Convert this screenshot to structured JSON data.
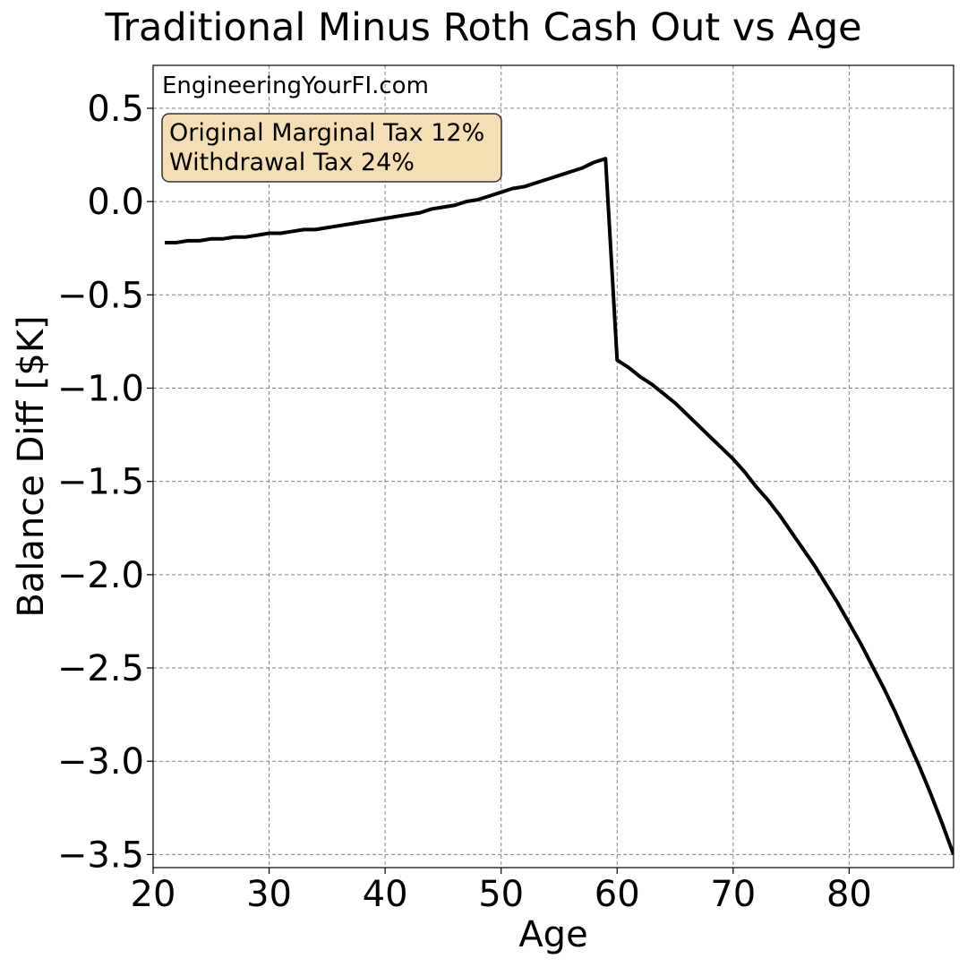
{
  "chart_data": {
    "type": "line",
    "title": "Traditional Minus Roth Cash Out vs Age",
    "xlabel": "Age",
    "ylabel": "Balance Diff [$K]",
    "watermark": "EngineeringYourFI.com",
    "annotation": [
      "Original Marginal Tax 12%",
      "Withdrawal Tax 24%"
    ],
    "annotation_color": "#f5deb3",
    "x": [
      21,
      22,
      23,
      24,
      25,
      26,
      27,
      28,
      29,
      30,
      31,
      32,
      33,
      34,
      35,
      36,
      37,
      38,
      39,
      40,
      41,
      42,
      43,
      44,
      45,
      46,
      47,
      48,
      49,
      50,
      51,
      52,
      53,
      54,
      55,
      56,
      57,
      58,
      59,
      60,
      61,
      62,
      63,
      64,
      65,
      66,
      67,
      68,
      69,
      70,
      71,
      72,
      73,
      74,
      75,
      76,
      77,
      78,
      79,
      80,
      81,
      82,
      83,
      84,
      85,
      86,
      87,
      88,
      89
    ],
    "series": [
      {
        "color": "#000000",
        "values": [
          -0.22,
          -0.22,
          -0.21,
          -0.21,
          -0.2,
          -0.2,
          -0.19,
          -0.19,
          -0.18,
          -0.17,
          -0.17,
          -0.16,
          -0.15,
          -0.15,
          -0.14,
          -0.13,
          -0.12,
          -0.11,
          -0.1,
          -0.09,
          -0.08,
          -0.07,
          -0.06,
          -0.04,
          -0.03,
          -0.02,
          0.0,
          0.01,
          0.03,
          0.05,
          0.07,
          0.08,
          0.1,
          0.12,
          0.14,
          0.16,
          0.18,
          0.21,
          0.23,
          -0.85,
          -0.89,
          -0.94,
          -0.98,
          -1.03,
          -1.08,
          -1.14,
          -1.2,
          -1.26,
          -1.32,
          -1.38,
          -1.45,
          -1.53,
          -1.6,
          -1.68,
          -1.77,
          -1.86,
          -1.95,
          -2.05,
          -2.15,
          -2.26,
          -2.37,
          -2.49,
          -2.61,
          -2.74,
          -2.88,
          -3.02,
          -3.17,
          -3.33,
          -3.5
        ]
      }
    ],
    "xlim": [
      20,
      89
    ],
    "ylim": [
      -3.57,
      0.73
    ],
    "xticks": [
      20,
      30,
      40,
      50,
      60,
      70,
      80
    ],
    "yticks": [
      {
        "value": 0.5,
        "label": "0.5"
      },
      {
        "value": 0,
        "label": "0.0"
      },
      {
        "value": -0.5,
        "label": "−0.5"
      },
      {
        "value": -1,
        "label": "−1.0"
      },
      {
        "value": -1.5,
        "label": "−1.5"
      },
      {
        "value": -2,
        "label": "−2.0"
      },
      {
        "value": -2.5,
        "label": "−2.5"
      },
      {
        "value": -3,
        "label": "−3.0"
      },
      {
        "value": -3.5,
        "label": "−3.5"
      }
    ],
    "grid": true
  }
}
